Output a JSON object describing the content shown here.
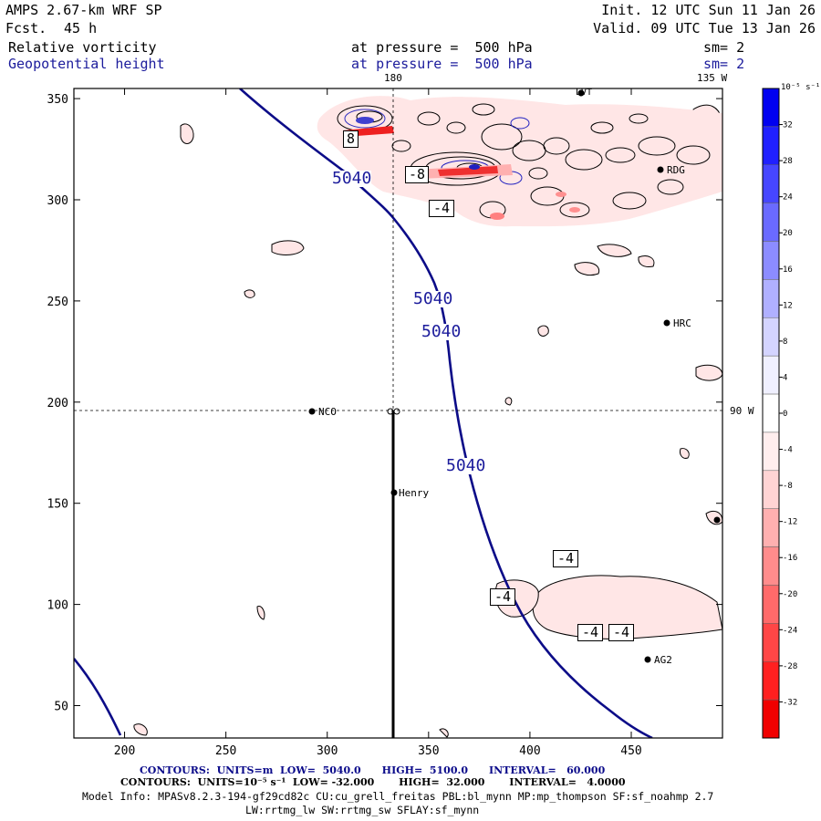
{
  "header": {
    "model": "AMPS 2.67-km WRF SP",
    "fcst_label": "Fcst.",
    "fcst_value": "45 h",
    "init": "Init. 12 UTC Sun 11 Jan 26",
    "valid": "Valid. 09 UTC Tue 13 Jan 26",
    "field1": "Relative vorticity",
    "field2": "Geopotential height",
    "pressure1": "at pressure =  500 hPa",
    "pressure2": "at pressure =  500 hPa",
    "sm1": "sm= 2",
    "sm2": "sm= 2"
  },
  "map": {
    "meridian_180": "180",
    "meridian_135w": "135 W",
    "meridian_90w": "90 W",
    "stations": [
      {
        "name": "LVT"
      },
      {
        "name": "RDG"
      },
      {
        "name": "HRC"
      },
      {
        "name": "NCO"
      },
      {
        "name": "Henry"
      },
      {
        "name": "AG2"
      }
    ],
    "height_labels": [
      "5040",
      "5040",
      "5040",
      "5040"
    ],
    "vort_labels": [
      "8",
      "-8",
      "-4",
      "-4",
      "-4",
      "-4",
      "-4"
    ]
  },
  "colorbar": {
    "unit": "10⁻⁵ s⁻¹",
    "ticks": [
      "32",
      "28",
      "24",
      "20",
      "16",
      "12",
      "8",
      "4",
      "0",
      "-4",
      "-8",
      "-12",
      "-16",
      "-20",
      "-24",
      "-28",
      "-32"
    ],
    "colors": [
      "#0000f0",
      "#2020ff",
      "#4646ff",
      "#6a6aff",
      "#8c8cff",
      "#b0b0ff",
      "#d4d4ff",
      "#f0f0ff",
      "#ffffff",
      "#ffeeee",
      "#ffd4d4",
      "#ffb0b0",
      "#ff8c8c",
      "#ff6a6a",
      "#ff4646",
      "#ff2020",
      "#f00000"
    ]
  },
  "chart_data": {
    "type": "contour-map",
    "title": "Relative vorticity / Geopotential height at 500 hPa",
    "x_ticks": [
      "200",
      "250",
      "300",
      "350",
      "400",
      "450"
    ],
    "y_ticks": [
      "350",
      "300",
      "250",
      "200",
      "150",
      "100",
      "50"
    ],
    "xlim": [
      175,
      495
    ],
    "ylim": [
      34,
      355
    ],
    "geopotential_contours_m": [
      5040
    ],
    "vorticity_range": [
      -32,
      32
    ],
    "cross_section": {
      "x": 334,
      "y": 196
    }
  },
  "footer": {
    "line1_contours": "CONTOURS:",
    "line1_units": "UNITS=m",
    "line1_low": "LOW=  5040.0",
    "line1_high": "HIGH=  5100.0",
    "line1_interval": "INTERVAL=   60.000",
    "line2": "CONTOURS:  UNITS=10⁻⁵ s⁻¹  LOW= -32.000       HIGH=  32.000       INTERVAL=   4.0000",
    "line3": "Model Info: MPASv8.2.3-194-gf29cd82c CU:cu_grell_freitas PBL:bl_mynn MP:mp_thompson SF:sf_noahmp 2.7",
    "line4": "LW:rrtmg_lw SW:rrtmg_sw SFLAY:sf_mynn"
  }
}
